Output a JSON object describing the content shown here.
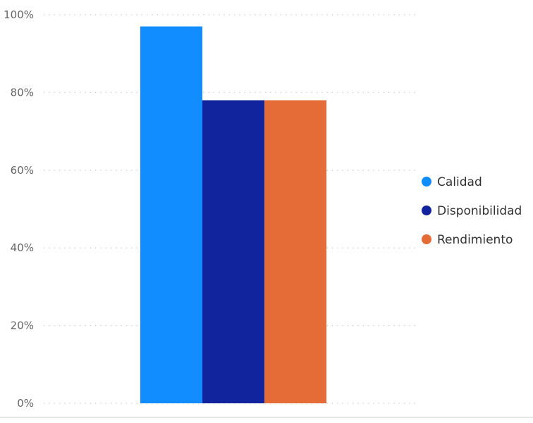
{
  "chart_data": {
    "type": "bar",
    "categories": [
      ""
    ],
    "series": [
      {
        "name": "Calidad",
        "color": "#118DFF",
        "values": [
          0.97
        ]
      },
      {
        "name": "Disponibilidad",
        "color": "#12239E",
        "values": [
          0.78
        ]
      },
      {
        "name": "Rendimiento",
        "color": "#E66C37",
        "values": [
          0.78
        ]
      }
    ],
    "ylim": [
      0,
      1
    ],
    "yticks": [
      "0%",
      "20%",
      "40%",
      "60%",
      "80%",
      "100%"
    ],
    "title": "",
    "xlabel": "",
    "ylabel": "",
    "grid": true,
    "legend_position": "right"
  }
}
